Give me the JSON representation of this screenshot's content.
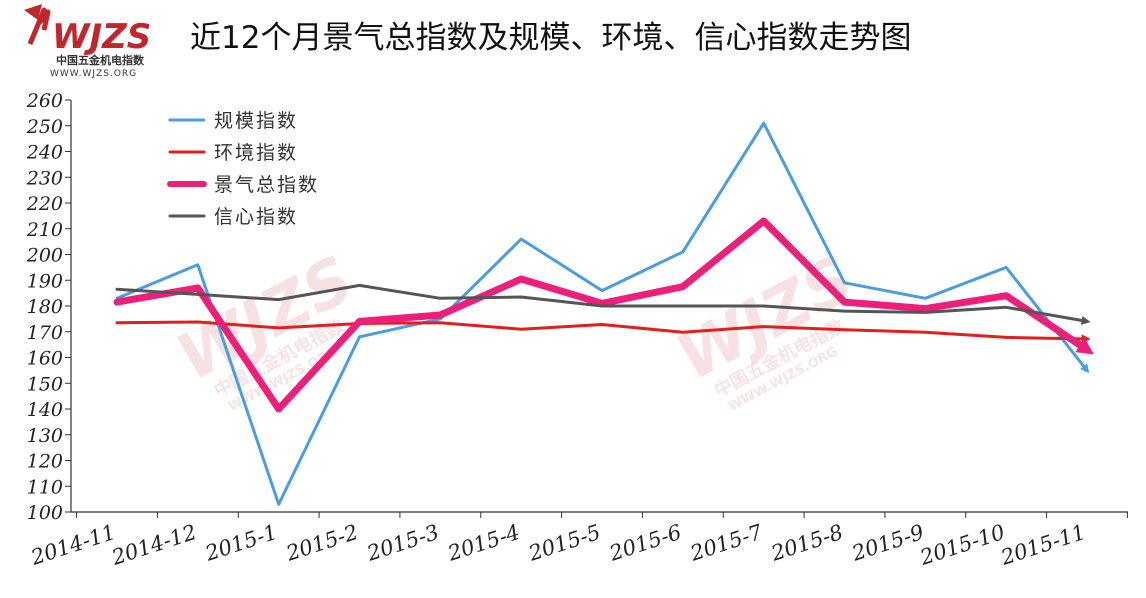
{
  "logo": {
    "name": "WJZS",
    "subtitle": "中国五金机电指数",
    "url": "WWW.WJZS.ORG"
  },
  "title": "近12个月景气总指数及规模、环境、信心指数走势图",
  "colors": {
    "scale": "#4a9de0",
    "environment": "#e01f1f",
    "overall": "#ec1f7a",
    "confidence": "#555555",
    "brand": "#c0262c"
  },
  "chart_data": {
    "type": "line",
    "title": "近12个月景气总指数及规模、环境、信心指数走势图",
    "categories": [
      "2014-11",
      "2014-12",
      "2015-1",
      "2015-2",
      "2015-3",
      "2015-4",
      "2015-5",
      "2015-6",
      "2015-7",
      "2015-8",
      "2015-9",
      "2015-10",
      "2015-11"
    ],
    "ylim": [
      100,
      260
    ],
    "ytick_step": 10,
    "grid": false,
    "legend_position": "top-left",
    "series": [
      {
        "key": "scale",
        "name": "规模指数",
        "values": [
          183,
          196,
          103,
          168,
          175,
          206,
          186,
          201,
          251,
          189,
          183,
          195,
          155
        ]
      },
      {
        "key": "environment",
        "name": "环境指数",
        "values": [
          173.5,
          173.8,
          171.5,
          173.2,
          173.5,
          171,
          172.8,
          169.8,
          172,
          170.8,
          169.8,
          167.8,
          167.2
        ]
      },
      {
        "key": "overall",
        "name": "景气总指数",
        "values": [
          181.5,
          187,
          140,
          174,
          176.5,
          190.5,
          181,
          187.5,
          213,
          181.5,
          179,
          184,
          163
        ]
      },
      {
        "key": "confidence",
        "name": "信心指数",
        "values": [
          186.5,
          184.5,
          182.5,
          188,
          183,
          183.5,
          180,
          180,
          180,
          178,
          177.5,
          179.5,
          174
        ]
      }
    ]
  }
}
